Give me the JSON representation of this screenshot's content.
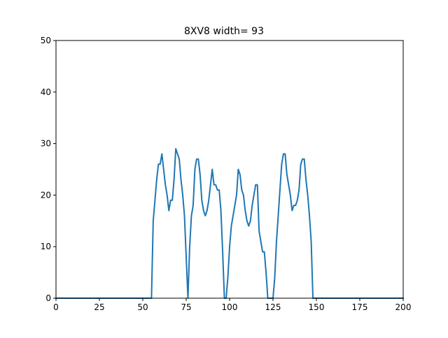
{
  "chart_data": {
    "type": "line",
    "title": "8XV8 width= 93",
    "xlabel": "",
    "ylabel": "",
    "xlim": [
      0,
      200
    ],
    "ylim": [
      0,
      50
    ],
    "x_ticks": [
      0,
      25,
      50,
      75,
      100,
      125,
      150,
      175,
      200
    ],
    "y_ticks": [
      0,
      10,
      20,
      30,
      40,
      50
    ],
    "grid": false,
    "series": [
      {
        "color": "#1f77b4",
        "points": [
          [
            0,
            0
          ],
          [
            55,
            0
          ],
          [
            56,
            15
          ],
          [
            57,
            19
          ],
          [
            58,
            23
          ],
          [
            59,
            26
          ],
          [
            60,
            26
          ],
          [
            61,
            28
          ],
          [
            62,
            25
          ],
          [
            63,
            22
          ],
          [
            64,
            20
          ],
          [
            65,
            17
          ],
          [
            66,
            19
          ],
          [
            67,
            19
          ],
          [
            68,
            23
          ],
          [
            69,
            29
          ],
          [
            70,
            28
          ],
          [
            71,
            27
          ],
          [
            72,
            23
          ],
          [
            73,
            20
          ],
          [
            74,
            16
          ],
          [
            75,
            8
          ],
          [
            76,
            0
          ],
          [
            77,
            10
          ],
          [
            78,
            16
          ],
          [
            79,
            18
          ],
          [
            80,
            25
          ],
          [
            81,
            27
          ],
          [
            82,
            27
          ],
          [
            83,
            24
          ],
          [
            84,
            19
          ],
          [
            85,
            17
          ],
          [
            86,
            16
          ],
          [
            87,
            17
          ],
          [
            88,
            19
          ],
          [
            89,
            22
          ],
          [
            90,
            25
          ],
          [
            91,
            22
          ],
          [
            92,
            22
          ],
          [
            93,
            21
          ],
          [
            94,
            21
          ],
          [
            95,
            17
          ],
          [
            96,
            9
          ],
          [
            97,
            0
          ],
          [
            98,
            0
          ],
          [
            99,
            4
          ],
          [
            100,
            10
          ],
          [
            101,
            14
          ],
          [
            102,
            16
          ],
          [
            103,
            18
          ],
          [
            104,
            20
          ],
          [
            105,
            25
          ],
          [
            106,
            24
          ],
          [
            107,
            21
          ],
          [
            108,
            20
          ],
          [
            109,
            17
          ],
          [
            110,
            15
          ],
          [
            111,
            14
          ],
          [
            112,
            15
          ],
          [
            113,
            18
          ],
          [
            114,
            20
          ],
          [
            115,
            22
          ],
          [
            116,
            22
          ],
          [
            117,
            13
          ],
          [
            118,
            11
          ],
          [
            119,
            9
          ],
          [
            120,
            9
          ],
          [
            121,
            5
          ],
          [
            122,
            0
          ],
          [
            125,
            0
          ],
          [
            126,
            4
          ],
          [
            127,
            11
          ],
          [
            128,
            16
          ],
          [
            129,
            21
          ],
          [
            130,
            26
          ],
          [
            131,
            28
          ],
          [
            132,
            28
          ],
          [
            133,
            24
          ],
          [
            134,
            22
          ],
          [
            135,
            20
          ],
          [
            136,
            17
          ],
          [
            137,
            18
          ],
          [
            138,
            18
          ],
          [
            139,
            19
          ],
          [
            140,
            21
          ],
          [
            141,
            26
          ],
          [
            142,
            27
          ],
          [
            143,
            27
          ],
          [
            144,
            23
          ],
          [
            145,
            20
          ],
          [
            146,
            16
          ],
          [
            147,
            11
          ],
          [
            148,
            0
          ],
          [
            200,
            0
          ]
        ]
      }
    ]
  }
}
